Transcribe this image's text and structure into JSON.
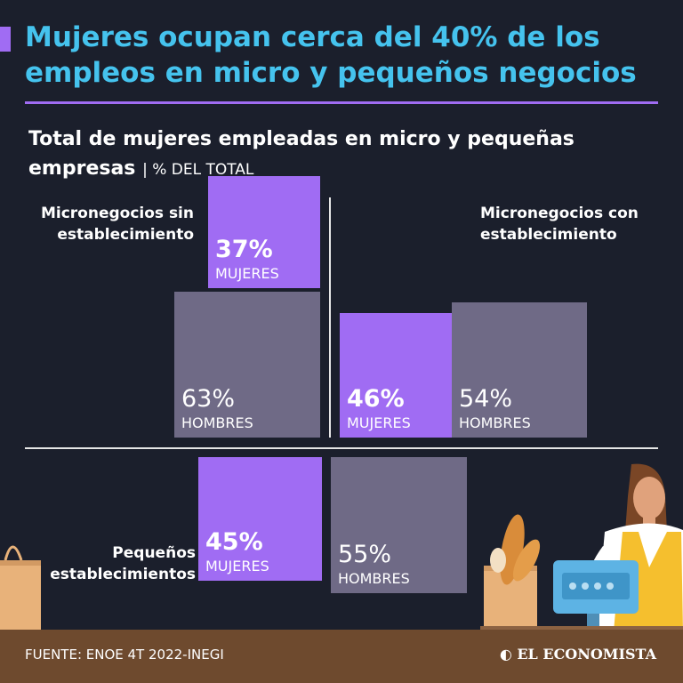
{
  "header": {
    "title": "Mujeres ocupan cerca del 40% de los empleos en micro y pequeños negocios"
  },
  "chart_data": {
    "type": "bar",
    "title": "Total de mujeres empleadas en micro y pequeñas empresas",
    "unit": "| % DEL TOTAL",
    "categories": [
      "Micronegocios sin establecimiento",
      "Micronegocios con establecimiento",
      "Pequeños establecimientos"
    ],
    "series": [
      {
        "name": "MUJERES",
        "values": [
          37,
          46,
          45
        ]
      },
      {
        "name": "HOMBRES",
        "values": [
          63,
          54,
          55
        ]
      }
    ],
    "value_labels": {
      "women": [
        "37%",
        "46%",
        "45%"
      ],
      "men": [
        "63%",
        "54%",
        "55%"
      ]
    },
    "ylim": [
      0,
      100
    ]
  },
  "footer": {
    "source": "FUENTE: ENOE 4T 2022-INEGI",
    "brand": "EL ECONOMISTA"
  },
  "colors": {
    "background": "#1b1f2c",
    "title": "#45c3ee",
    "accent": "#a06cf3",
    "men": "#6f6a86",
    "footer": "#6e4a2e"
  }
}
